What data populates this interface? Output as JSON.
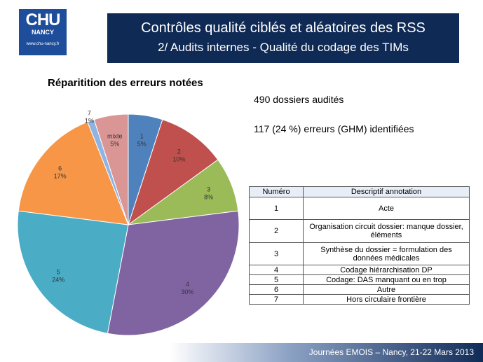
{
  "logo": {
    "main": "CHU",
    "sub": "NANCY",
    "url": "www.chu-nancy.fr"
  },
  "header": {
    "line1": "Contrôles qualité ciblés et aléatoires des RSS",
    "line2": "2/ Audits internes - Qualité du codage des TIMs"
  },
  "stats": {
    "line1": "490 dossiers audités",
    "line2": "117 (24 %) erreurs (GHM) identifiées"
  },
  "chart_data": {
    "type": "pie",
    "title": "Réparitition des erreurs notées",
    "categories": [
      "1",
      "2",
      "3",
      "4",
      "5",
      "6",
      "7",
      "mixte"
    ],
    "values": [
      5,
      10,
      8,
      30,
      24,
      17,
      1,
      5
    ],
    "labels": [
      "5%",
      "10%",
      "8%",
      "30%",
      "24%",
      "17%",
      "1%",
      "5%"
    ],
    "colors": [
      "#4f81bd",
      "#c0504d",
      "#9bbb59",
      "#8064a2",
      "#4bacc6",
      "#f79646",
      "#8eb4e3",
      "#d99694"
    ]
  },
  "legend_table": {
    "headers": [
      "Numéro",
      "Descriptif annotation"
    ],
    "rows": [
      {
        "num": "1",
        "desc": "Acte"
      },
      {
        "num": "2",
        "desc": "Organisation circuit dossier: manque dossier, éléments"
      },
      {
        "num": "3",
        "desc": "Synthèse du dossier = formulation des données médicales"
      },
      {
        "num": "4",
        "desc": "Codage hiérarchisation DP"
      },
      {
        "num": "5",
        "desc": "Codage: DAS manquant ou en trop"
      },
      {
        "num": "6",
        "desc": "Autre"
      },
      {
        "num": "7",
        "desc": "Hors circulaire frontière"
      }
    ]
  },
  "footer": {
    "text": "Journées EMOIS – Nancy, 21-22 Mars 2013"
  }
}
